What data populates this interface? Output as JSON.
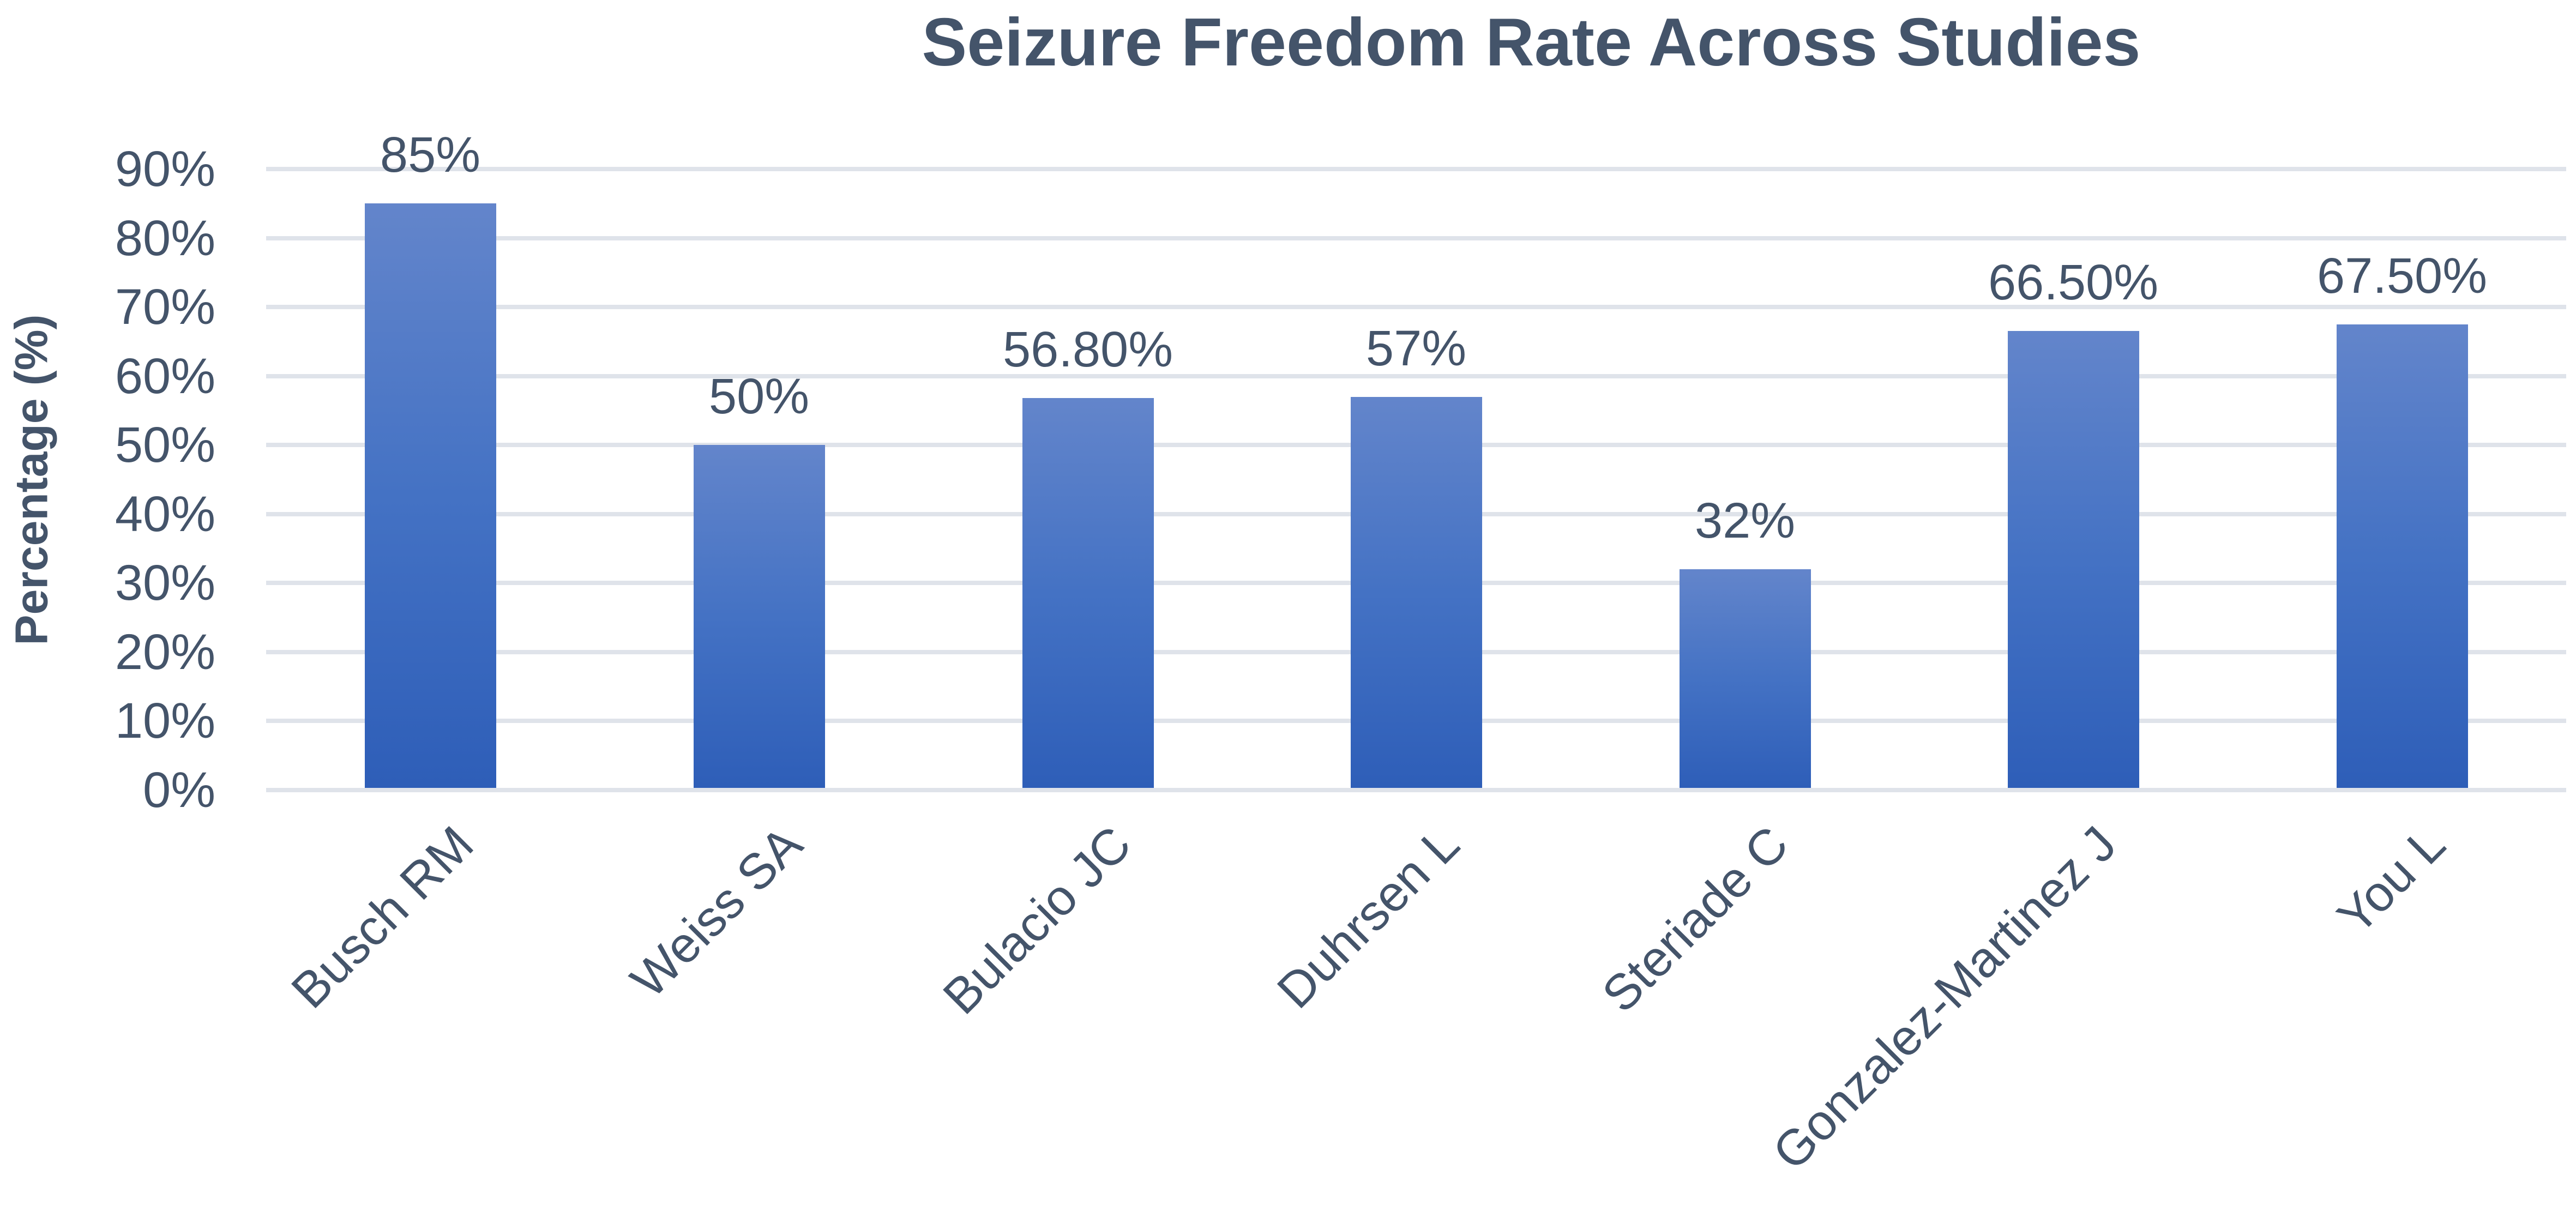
{
  "chart_data": {
    "type": "bar",
    "title": "Seizure Freedom Rate Across Studies",
    "xlabel": "",
    "ylabel": "Percentage (%)",
    "categories": [
      "Busch RM",
      "Weiss SA",
      "Bulacio JC",
      "Duhrsen L",
      "Steriade C",
      "Gonzalez-Martinez J",
      "You L"
    ],
    "values": [
      85,
      50,
      56.8,
      57,
      32,
      66.5,
      67.5
    ],
    "data_labels": [
      "85%",
      "50%",
      "56.80%",
      "57%",
      "32%",
      "66.50%",
      "67.50%"
    ],
    "ylim": [
      0,
      90
    ],
    "yticks": [
      0,
      10,
      20,
      30,
      40,
      50,
      60,
      70,
      80,
      90
    ],
    "ytick_labels": [
      "0%",
      "10%",
      "20%",
      "30%",
      "40%",
      "50%",
      "60%",
      "70%",
      "80%",
      "90%"
    ],
    "grid": true,
    "legend": null,
    "bar_color_top": "#6385CB",
    "bar_color_bottom": "#2E5EB8",
    "text_color": "#44546A",
    "grid_color": "#DFE3EA"
  }
}
